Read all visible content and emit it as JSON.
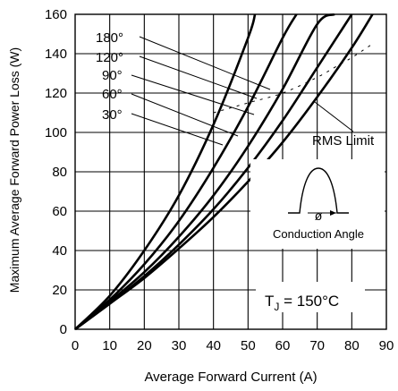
{
  "chart_data": {
    "type": "line",
    "xlabel": "Average Forward Current (A)",
    "ylabel": "Maximum Average Forward Power Loss (W)",
    "xlim": [
      0,
      90
    ],
    "ylim": [
      0,
      160
    ],
    "x_ticks": [
      "0",
      "10",
      "20",
      "30",
      "40",
      "50",
      "60",
      "70",
      "80",
      "90"
    ],
    "y_ticks": [
      "0",
      "20",
      "40",
      "60",
      "80",
      "100",
      "120",
      "140",
      "160"
    ],
    "grid": true,
    "series": [
      {
        "name": "180°",
        "x": [
          0,
          10,
          20,
          30,
          40,
          50,
          60,
          70,
          80,
          86
        ],
        "y": [
          0,
          13,
          26,
          41,
          57,
          75,
          95,
          118,
          143,
          160
        ]
      },
      {
        "name": "120°",
        "x": [
          0,
          10,
          20,
          30,
          40,
          50,
          60,
          70,
          80
        ],
        "y": [
          0,
          13,
          27,
          43,
          61,
          82,
          106,
          133,
          160
        ]
      },
      {
        "name": "90°",
        "x": [
          0,
          10,
          20,
          30,
          40,
          50,
          60,
          70,
          75
        ],
        "y": [
          0,
          14,
          29,
          47,
          68,
          93,
          122,
          155,
          160
        ]
      },
      {
        "name": "60°",
        "x": [
          0,
          10,
          20,
          30,
          40,
          50,
          60,
          64
        ],
        "y": [
          0,
          15,
          33,
          55,
          82,
          113,
          148,
          160
        ]
      },
      {
        "name": "30°",
        "x": [
          0,
          10,
          20,
          30,
          40,
          50,
          52
        ],
        "y": [
          0,
          17,
          40,
          68,
          104,
          148,
          160
        ]
      }
    ],
    "rms_limit": {
      "label": "RMS Limit",
      "x": [
        40,
        50,
        60,
        70,
        75,
        80,
        86
      ],
      "y": [
        110,
        115,
        120,
        128,
        133,
        138,
        145
      ]
    },
    "annotations": {
      "conduction_angle_label": "Conduction Angle",
      "angle_symbol": "ø",
      "tj_label": "T",
      "tj_subscript": "J",
      "tj_value": " = 150°C"
    }
  }
}
